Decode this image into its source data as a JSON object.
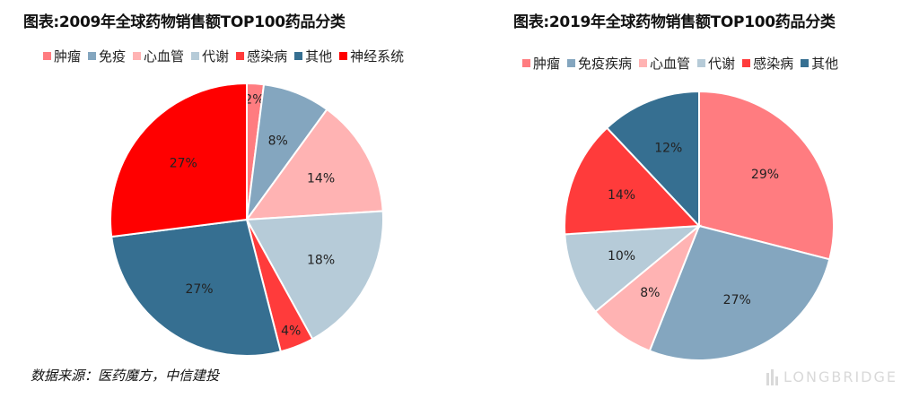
{
  "chart_data": [
    {
      "type": "pie",
      "title": "图表:2009年全球药物销售额TOP100药品分类",
      "categories": [
        "肿瘤",
        "免疫",
        "心血管",
        "代谢",
        "感染病",
        "其他",
        "神经系统"
      ],
      "values": [
        2,
        8,
        14,
        18,
        4,
        27,
        27
      ],
      "labels": [
        "2%",
        "8%",
        "14%",
        "18%",
        "4%",
        "27%",
        "27%"
      ],
      "colors": [
        "#FF7C80",
        "#84A6BF",
        "#FFB3B3",
        "#B6CBD8",
        "#FF3B3B",
        "#366F91",
        "#FF0000"
      ],
      "legend": "top"
    },
    {
      "type": "pie",
      "title": "图表:2019年全球药物销售额TOP100药品分类",
      "categories": [
        "肿瘤",
        "免疫疾病",
        "心血管",
        "代谢",
        "感染病",
        "其他"
      ],
      "values": [
        29,
        27,
        8,
        10,
        14,
        12
      ],
      "labels": [
        "29%",
        "27%",
        "8%",
        "10%",
        "14%",
        "12%"
      ],
      "colors": [
        "#FF7C80",
        "#84A6BF",
        "#FFB3B3",
        "#B6CBD8",
        "#FF3B3B",
        "#366F91"
      ],
      "legend": "top"
    }
  ],
  "source": "数据来源：医药魔方，中信建投",
  "watermark": "LONGBRIDGE"
}
